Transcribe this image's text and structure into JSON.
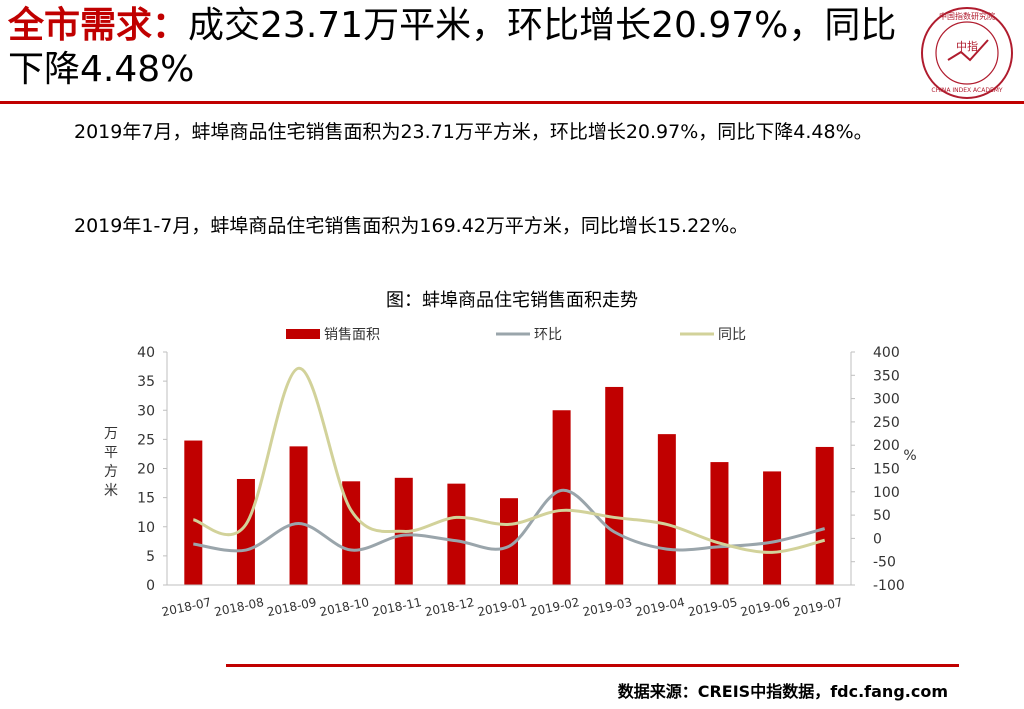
{
  "headline": {
    "lead": "全市需求：",
    "rest": "成交23.71万平米，环比增长20.97%，同比下降4.48%"
  },
  "logo": {
    "top_text": "中国指数研究院",
    "bottom_text": "CHINA INDEX ACADEMY",
    "center_text": "中指"
  },
  "paragraphs": [
    "2019年7月，蚌埠商品住宅销售面积为23.71万平方米，环比增长20.97%，同比下降4.48%。",
    "2019年1-7月，蚌埠商品住宅销售面积为169.42万平方米，同比增长15.22%。"
  ],
  "source": "数据来源：CREIS中指数据，fdc.fang.com",
  "colors": {
    "accent": "#c00000",
    "bar": "#c00000",
    "mom_line": "#9aa5ab",
    "yoy_line": "#d2d29a"
  },
  "chart_data": {
    "type": "bar",
    "title": "图：蚌埠商品住宅销售面积走势",
    "categories": [
      "2018-07",
      "2018-08",
      "2018-09",
      "2018-10",
      "2018-11",
      "2018-12",
      "2019-01",
      "2019-02",
      "2019-03",
      "2019-04",
      "2019-05",
      "2019-06",
      "2019-07"
    ],
    "ylabel": "万平方米",
    "y2label": "%",
    "ylim": [
      0,
      40
    ],
    "y2lim": [
      -100,
      400
    ],
    "yticks": [
      "0",
      "5",
      "10",
      "15",
      "20",
      "25",
      "30",
      "35",
      "40"
    ],
    "y2ticks": [
      "-100",
      "-50",
      "0",
      "50",
      "100",
      "150",
      "200",
      "250",
      "300",
      "350",
      "400"
    ],
    "legend_position": "top",
    "grid": false,
    "series": [
      {
        "name": "销售面积",
        "kind": "bar",
        "axis": "left",
        "values": [
          24.8,
          18.2,
          23.8,
          17.8,
          18.4,
          17.4,
          14.9,
          30.0,
          34.0,
          25.9,
          21.1,
          19.5,
          23.7
        ]
      },
      {
        "name": "环比",
        "kind": "line",
        "axis": "right",
        "values": [
          -12,
          -25,
          32,
          -25,
          7,
          -5,
          -17,
          103,
          14,
          -23,
          -18,
          -8,
          21
        ]
      },
      {
        "name": "同比",
        "kind": "line",
        "axis": "right",
        "values": [
          40,
          30,
          365,
          60,
          15,
          45,
          30,
          60,
          45,
          30,
          -10,
          -30,
          -4
        ]
      }
    ]
  }
}
